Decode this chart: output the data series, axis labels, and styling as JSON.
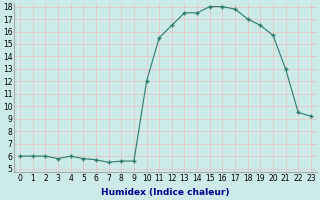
{
  "x": [
    0,
    1,
    2,
    3,
    4,
    5,
    6,
    7,
    8,
    9,
    10,
    11,
    12,
    13,
    14,
    15,
    16,
    17,
    18,
    19,
    20,
    21,
    22,
    23
  ],
  "y": [
    6.0,
    6.0,
    6.0,
    5.8,
    6.0,
    5.8,
    5.7,
    5.5,
    5.6,
    5.6,
    12.0,
    15.5,
    16.5,
    17.5,
    17.5,
    18.0,
    18.0,
    17.8,
    17.0,
    16.5,
    15.7,
    13.0,
    9.5,
    9.2
  ],
  "xlabel": "Humidex (Indice chaleur)",
  "ylim": [
    5,
    18
  ],
  "xlim": [
    -0.5,
    23.5
  ],
  "yticks": [
    5,
    6,
    7,
    8,
    9,
    10,
    11,
    12,
    13,
    14,
    15,
    16,
    17,
    18
  ],
  "xticks": [
    0,
    1,
    2,
    3,
    4,
    5,
    6,
    7,
    8,
    9,
    10,
    11,
    12,
    13,
    14,
    15,
    16,
    17,
    18,
    19,
    20,
    21,
    22,
    23
  ],
  "line_color": "#2d7a6e",
  "marker": "+",
  "bg_color": "#cceae7",
  "grid_color": "#e8c0c0",
  "xlabel_color": "#00008b",
  "title_fontsize": 6.5,
  "label_fontsize": 6.5,
  "tick_fontsize": 5.5
}
